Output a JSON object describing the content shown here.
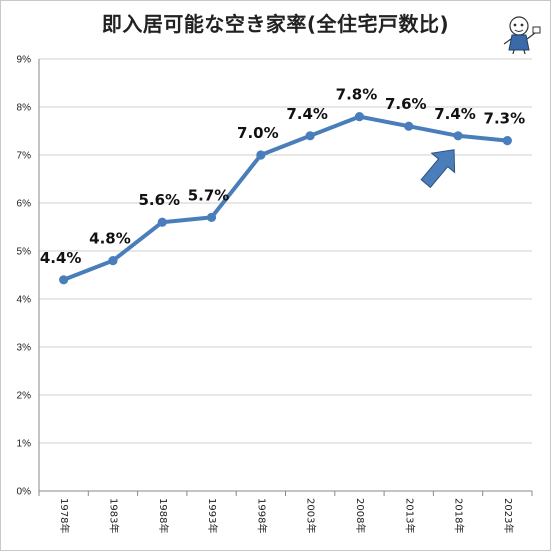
{
  "chart_data": {
    "type": "line",
    "title": "即入居可能な空き家率(全住宅戸数比)",
    "categories": [
      "1978年",
      "1983年",
      "1988年",
      "1993年",
      "1998年",
      "2003年",
      "2008年",
      "2013年",
      "2018年",
      "2023年"
    ],
    "values": [
      4.4,
      4.8,
      5.6,
      5.7,
      7.0,
      7.4,
      7.8,
      7.6,
      7.4,
      7.3
    ],
    "data_labels": [
      "4.4%",
      "4.8%",
      "5.6%",
      "5.7%",
      "7.0%",
      "7.4%",
      "7.8%",
      "7.6%",
      "7.4%",
      "7.3%"
    ],
    "y_ticks": [
      "0%",
      "1%",
      "2%",
      "3%",
      "4%",
      "5%",
      "6%",
      "7%",
      "8%",
      "9%"
    ],
    "ylim": [
      0,
      9
    ],
    "grid": true,
    "series_color": "#4a7ebb",
    "annotation": {
      "type": "arrow",
      "points_to": "2018年",
      "color": "#4a7ebb",
      "icon": "mascot-illustration"
    }
  }
}
